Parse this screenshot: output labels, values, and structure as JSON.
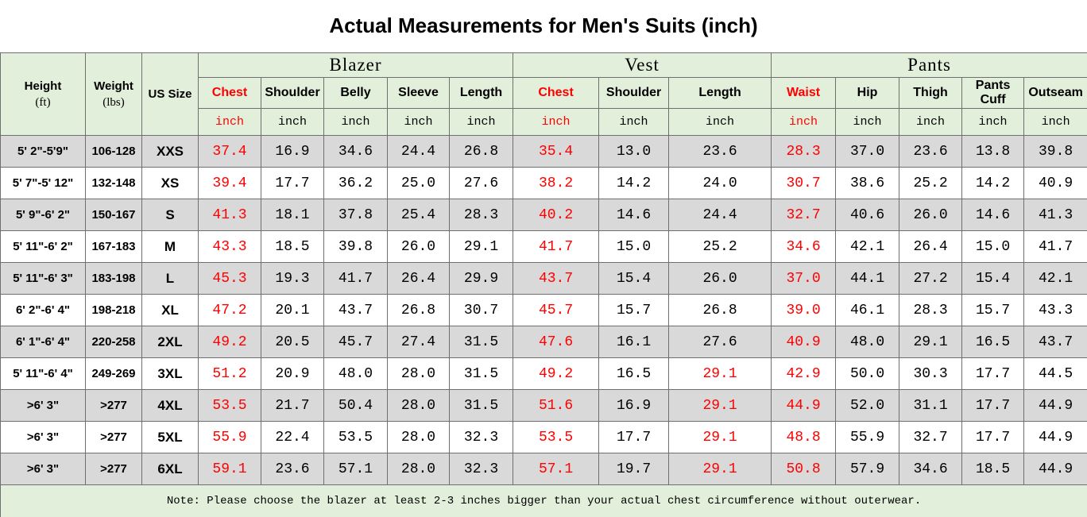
{
  "title": "Actual Measurements for Men's Suits (inch)",
  "table": {
    "left_headers": [
      {
        "label": "Height",
        "unit": "(ft)"
      },
      {
        "label": "Weight",
        "unit": "(lbs)"
      },
      {
        "label": "US Size"
      }
    ],
    "groups": [
      {
        "name": "Blazer",
        "columns": [
          {
            "label": "Chest",
            "unit": "inch"
          },
          {
            "label": "Shoulder",
            "unit": "inch"
          },
          {
            "label": "Belly",
            "unit": "inch"
          },
          {
            "label": "Sleeve",
            "unit": "inch"
          },
          {
            "label": "Length",
            "unit": "inch"
          }
        ]
      },
      {
        "name": "Vest",
        "columns": [
          {
            "label": "Chest",
            "unit": "inch"
          },
          {
            "label": "Shoulder",
            "unit": "inch"
          },
          {
            "label": "Length",
            "unit": "inch"
          }
        ]
      },
      {
        "name": "Pants",
        "columns": [
          {
            "label": "Waist",
            "unit": "inch"
          },
          {
            "label": "Hip",
            "unit": "inch"
          },
          {
            "label": "Thigh",
            "unit": "inch"
          },
          {
            "label": "Pants Cuff",
            "unit": "inch"
          },
          {
            "label": "Outseam",
            "unit": "inch"
          }
        ]
      }
    ],
    "rows": [
      [
        "5' 2\"-5'9\"",
        "106-128",
        "XXS",
        "37.4",
        "16.9",
        "34.6",
        "24.4",
        "26.8",
        "35.4",
        "13.0",
        "23.6",
        "28.3",
        "37.0",
        "23.6",
        "13.8",
        "39.8"
      ],
      [
        "5' 7\"-5' 12\"",
        "132-148",
        "XS",
        "39.4",
        "17.7",
        "36.2",
        "25.0",
        "27.6",
        "38.2",
        "14.2",
        "24.0",
        "30.7",
        "38.6",
        "25.2",
        "14.2",
        "40.9"
      ],
      [
        "5' 9\"-6' 2\"",
        "150-167",
        "S",
        "41.3",
        "18.1",
        "37.8",
        "25.4",
        "28.3",
        "40.2",
        "14.6",
        "24.4",
        "32.7",
        "40.6",
        "26.0",
        "14.6",
        "41.3"
      ],
      [
        "5' 11\"-6' 2\"",
        "167-183",
        "M",
        "43.3",
        "18.5",
        "39.8",
        "26.0",
        "29.1",
        "41.7",
        "15.0",
        "25.2",
        "34.6",
        "42.1",
        "26.4",
        "15.0",
        "41.7"
      ],
      [
        "5' 11\"-6' 3\"",
        "183-198",
        "L",
        "45.3",
        "19.3",
        "41.7",
        "26.4",
        "29.9",
        "43.7",
        "15.4",
        "26.0",
        "37.0",
        "44.1",
        "27.2",
        "15.4",
        "42.1"
      ],
      [
        "6' 2\"-6' 4\"",
        "198-218",
        "XL",
        "47.2",
        "20.1",
        "43.7",
        "26.8",
        "30.7",
        "45.7",
        "15.7",
        "26.8",
        "39.0",
        "46.1",
        "28.3",
        "15.7",
        "43.3"
      ],
      [
        "6' 1\"-6' 4\"",
        "220-258",
        "2XL",
        "49.2",
        "20.5",
        "45.7",
        "27.4",
        "31.5",
        "47.6",
        "16.1",
        "27.6",
        "40.9",
        "48.0",
        "29.1",
        "16.5",
        "43.7"
      ],
      [
        "5' 11\"-6' 4\"",
        "249-269",
        "3XL",
        "51.2",
        "20.9",
        "48.0",
        "28.0",
        "31.5",
        "49.2",
        "16.5",
        "29.1",
        "42.9",
        "50.0",
        "30.3",
        "17.7",
        "44.5"
      ],
      [
        ">6' 3\"",
        ">277",
        "4XL",
        "53.5",
        "21.7",
        "50.4",
        "28.0",
        "31.5",
        "51.6",
        "16.9",
        "29.1",
        "44.9",
        "52.0",
        "31.1",
        "17.7",
        "44.9"
      ],
      [
        ">6' 3\"",
        ">277",
        "5XL",
        "55.9",
        "22.4",
        "53.5",
        "28.0",
        "32.3",
        "53.5",
        "17.7",
        "29.1",
        "48.8",
        "55.9",
        "32.7",
        "17.7",
        "44.9"
      ],
      [
        ">6' 3\"",
        ">277",
        "6XL",
        "59.1",
        "23.6",
        "57.1",
        "28.0",
        "32.3",
        "57.1",
        "19.7",
        "29.1",
        "50.8",
        "57.9",
        "34.6",
        "18.5",
        "44.9"
      ]
    ],
    "note": "Note: Please choose the blazer at least 2-3 inches bigger than your actual chest circumference without outerwear."
  }
}
